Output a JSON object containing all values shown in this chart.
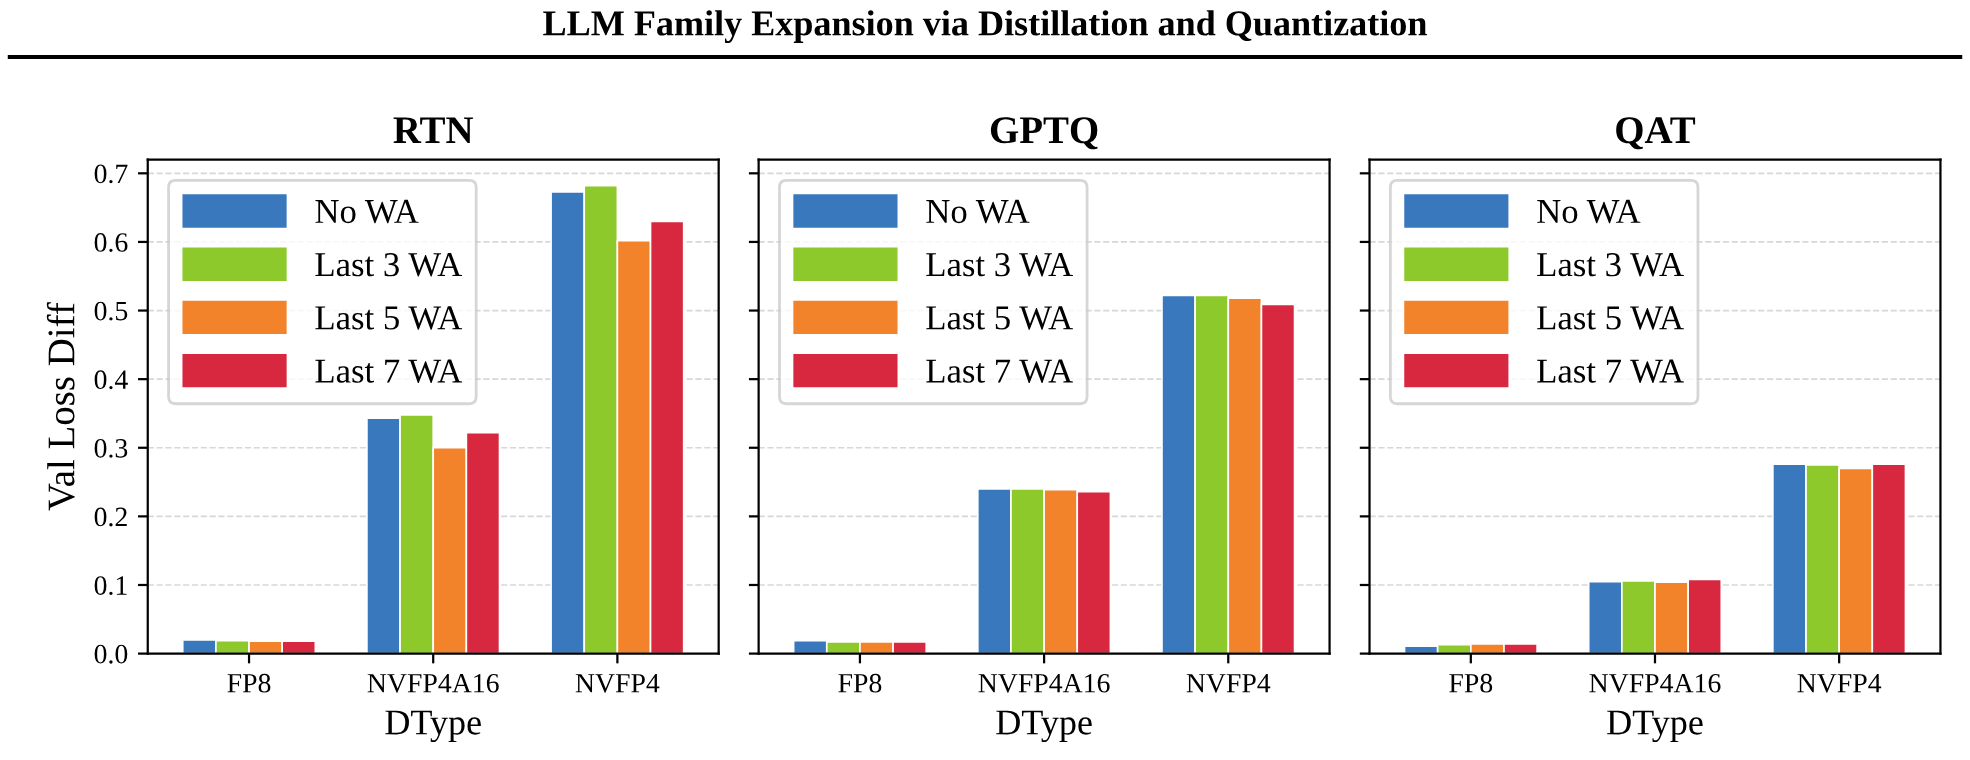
{
  "chart_data": [
    {
      "type": "bar",
      "title": "RTN",
      "xlabel": "DType",
      "ylabel": "Val Loss Diff",
      "annotations": [
        "LLM Family Expansion via Distillation and Quantization"
      ],
      "categories": [
        "FP8",
        "NVFP4A16",
        "NVFP4"
      ],
      "series": [
        {
          "name": "No WA",
          "color": "#3a78bd",
          "values": [
            0.02,
            0.343,
            0.673
          ]
        },
        {
          "name": "Last 3 WA",
          "color": "#8dc92b",
          "values": [
            0.019,
            0.348,
            0.682
          ]
        },
        {
          "name": "Last 5 WA",
          "color": "#f2832b",
          "values": [
            0.018,
            0.3,
            0.602
          ]
        },
        {
          "name": "Last 7 WA",
          "color": "#d72840",
          "values": [
            0.018,
            0.322,
            0.63
          ]
        }
      ],
      "ylim": [
        0,
        0.72
      ],
      "yticks": [
        {
          "value": 0,
          "label": "0.0"
        },
        0.1,
        0.2,
        0.3,
        0.4,
        0.5,
        0.6,
        0.7
      ],
      "grid": "y",
      "legend": "top left"
    },
    {
      "type": "bar",
      "title": "GPTQ",
      "xlabel": "DType",
      "categories": [
        "FP8",
        "NVFP4A16",
        "NVFP4"
      ],
      "series": [
        {
          "name": "No WA",
          "color": "#3a78bd",
          "values": [
            0.019,
            0.24,
            0.522
          ]
        },
        {
          "name": "Last 3 WA",
          "color": "#8dc92b",
          "values": [
            0.017,
            0.24,
            0.522
          ]
        },
        {
          "name": "Last 5 WA",
          "color": "#f2832b",
          "values": [
            0.017,
            0.239,
            0.518
          ]
        },
        {
          "name": "Last 7 WA",
          "color": "#d72840",
          "values": [
            0.017,
            0.236,
            0.509
          ]
        }
      ],
      "ylim": [
        0,
        0.72
      ],
      "yticks": [
        {
          "value": 0,
          "label": null
        },
        {
          "value": 0.1,
          "label": null
        },
        {
          "value": 0.2,
          "label": null
        },
        {
          "value": 0.3,
          "label": null
        },
        {
          "value": 0.4,
          "label": null
        },
        {
          "value": 0.5,
          "label": null
        },
        {
          "value": 0.6,
          "label": null
        },
        {
          "value": 0.7,
          "label": null
        }
      ],
      "grid": "y",
      "legend": "top left",
      "tick_labels": "x"
    },
    {
      "type": "bar",
      "title": "QAT",
      "xlabel": "DType",
      "categories": [
        "FP8",
        "NVFP4A16",
        "NVFP4"
      ],
      "series": [
        {
          "name": "No WA",
          "color": "#3a78bd",
          "values": [
            0.011,
            0.105,
            0.276
          ]
        },
        {
          "name": "Last 3 WA",
          "color": "#8dc92b",
          "values": [
            0.013,
            0.106,
            0.275
          ]
        },
        {
          "name": "Last 5 WA",
          "color": "#f2832b",
          "values": [
            0.014,
            0.104,
            0.27
          ]
        },
        {
          "name": "Last 7 WA",
          "color": "#d72840",
          "values": [
            0.014,
            0.108,
            0.276
          ]
        }
      ],
      "ylim": [
        0,
        0.72
      ],
      "yticks": [
        {
          "value": 0,
          "label": null
        },
        {
          "value": 0.1,
          "label": null
        },
        {
          "value": 0.2,
          "label": null
        },
        {
          "value": 0.3,
          "label": null
        },
        {
          "value": 0.4,
          "label": null
        },
        {
          "value": 0.5,
          "label": null
        },
        {
          "value": 0.6,
          "label": null
        },
        {
          "value": 0.7,
          "label": null
        }
      ],
      "grid": "y",
      "legend": "top left",
      "tick_labels": "x"
    }
  ]
}
